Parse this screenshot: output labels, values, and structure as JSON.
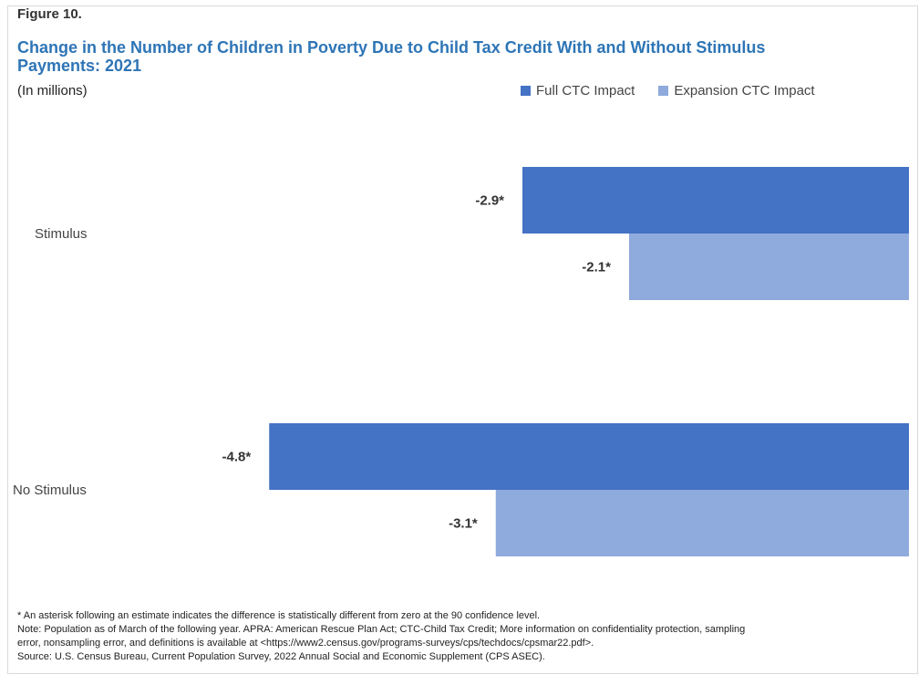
{
  "figure_label": "Figure 10.",
  "title_lines": [
    "Change in the Number of Children in Poverty Due to Child Tax Credit With and Without Stimulus",
    "Payments: 2021"
  ],
  "subtitle": "(In millions)",
  "colors": {
    "full": "#4472c4",
    "expansion": "#8faadc",
    "title": "#2e75b6"
  },
  "chart_data": {
    "type": "bar",
    "orientation": "horizontal",
    "title": "Change in the Number of Children in Poverty Due to Child Tax Credit With and Without Stimulus Payments: 2021",
    "xlabel": "",
    "ylabel": "",
    "units": "(In millions)",
    "categories": [
      "Stimulus",
      "No Stimulus"
    ],
    "series": [
      {
        "name": "Full CTC Impact",
        "values": [
          -2.9,
          -4.8
        ],
        "labels": [
          "-2.9*",
          "-4.8*"
        ]
      },
      {
        "name": "Expansion CTC Impact",
        "values": [
          -2.1,
          -3.1
        ],
        "labels": [
          "-2.1*",
          "-3.1*"
        ]
      }
    ],
    "xlim": [
      -5.5,
      0
    ],
    "grid": false,
    "legend_position": "top-right"
  },
  "footnotes": [
    "* An asterisk following an estimate indicates the difference is statistically different from zero at the 90 confidence level.",
    "Note: Population as of March of the following year.  APRA: American Rescue Plan Act; CTC-Child Tax Credit; More information on confidentiality protection, sampling",
    "error, nonsampling error, and definitions is available at <https://www2.census.gov/programs-surveys/cps/techdocs/cpsmar22.pdf>.",
    "Source: U.S. Census Bureau, Current Population Survey, 2022 Annual Social and Economic Supplement (CPS ASEC)."
  ]
}
